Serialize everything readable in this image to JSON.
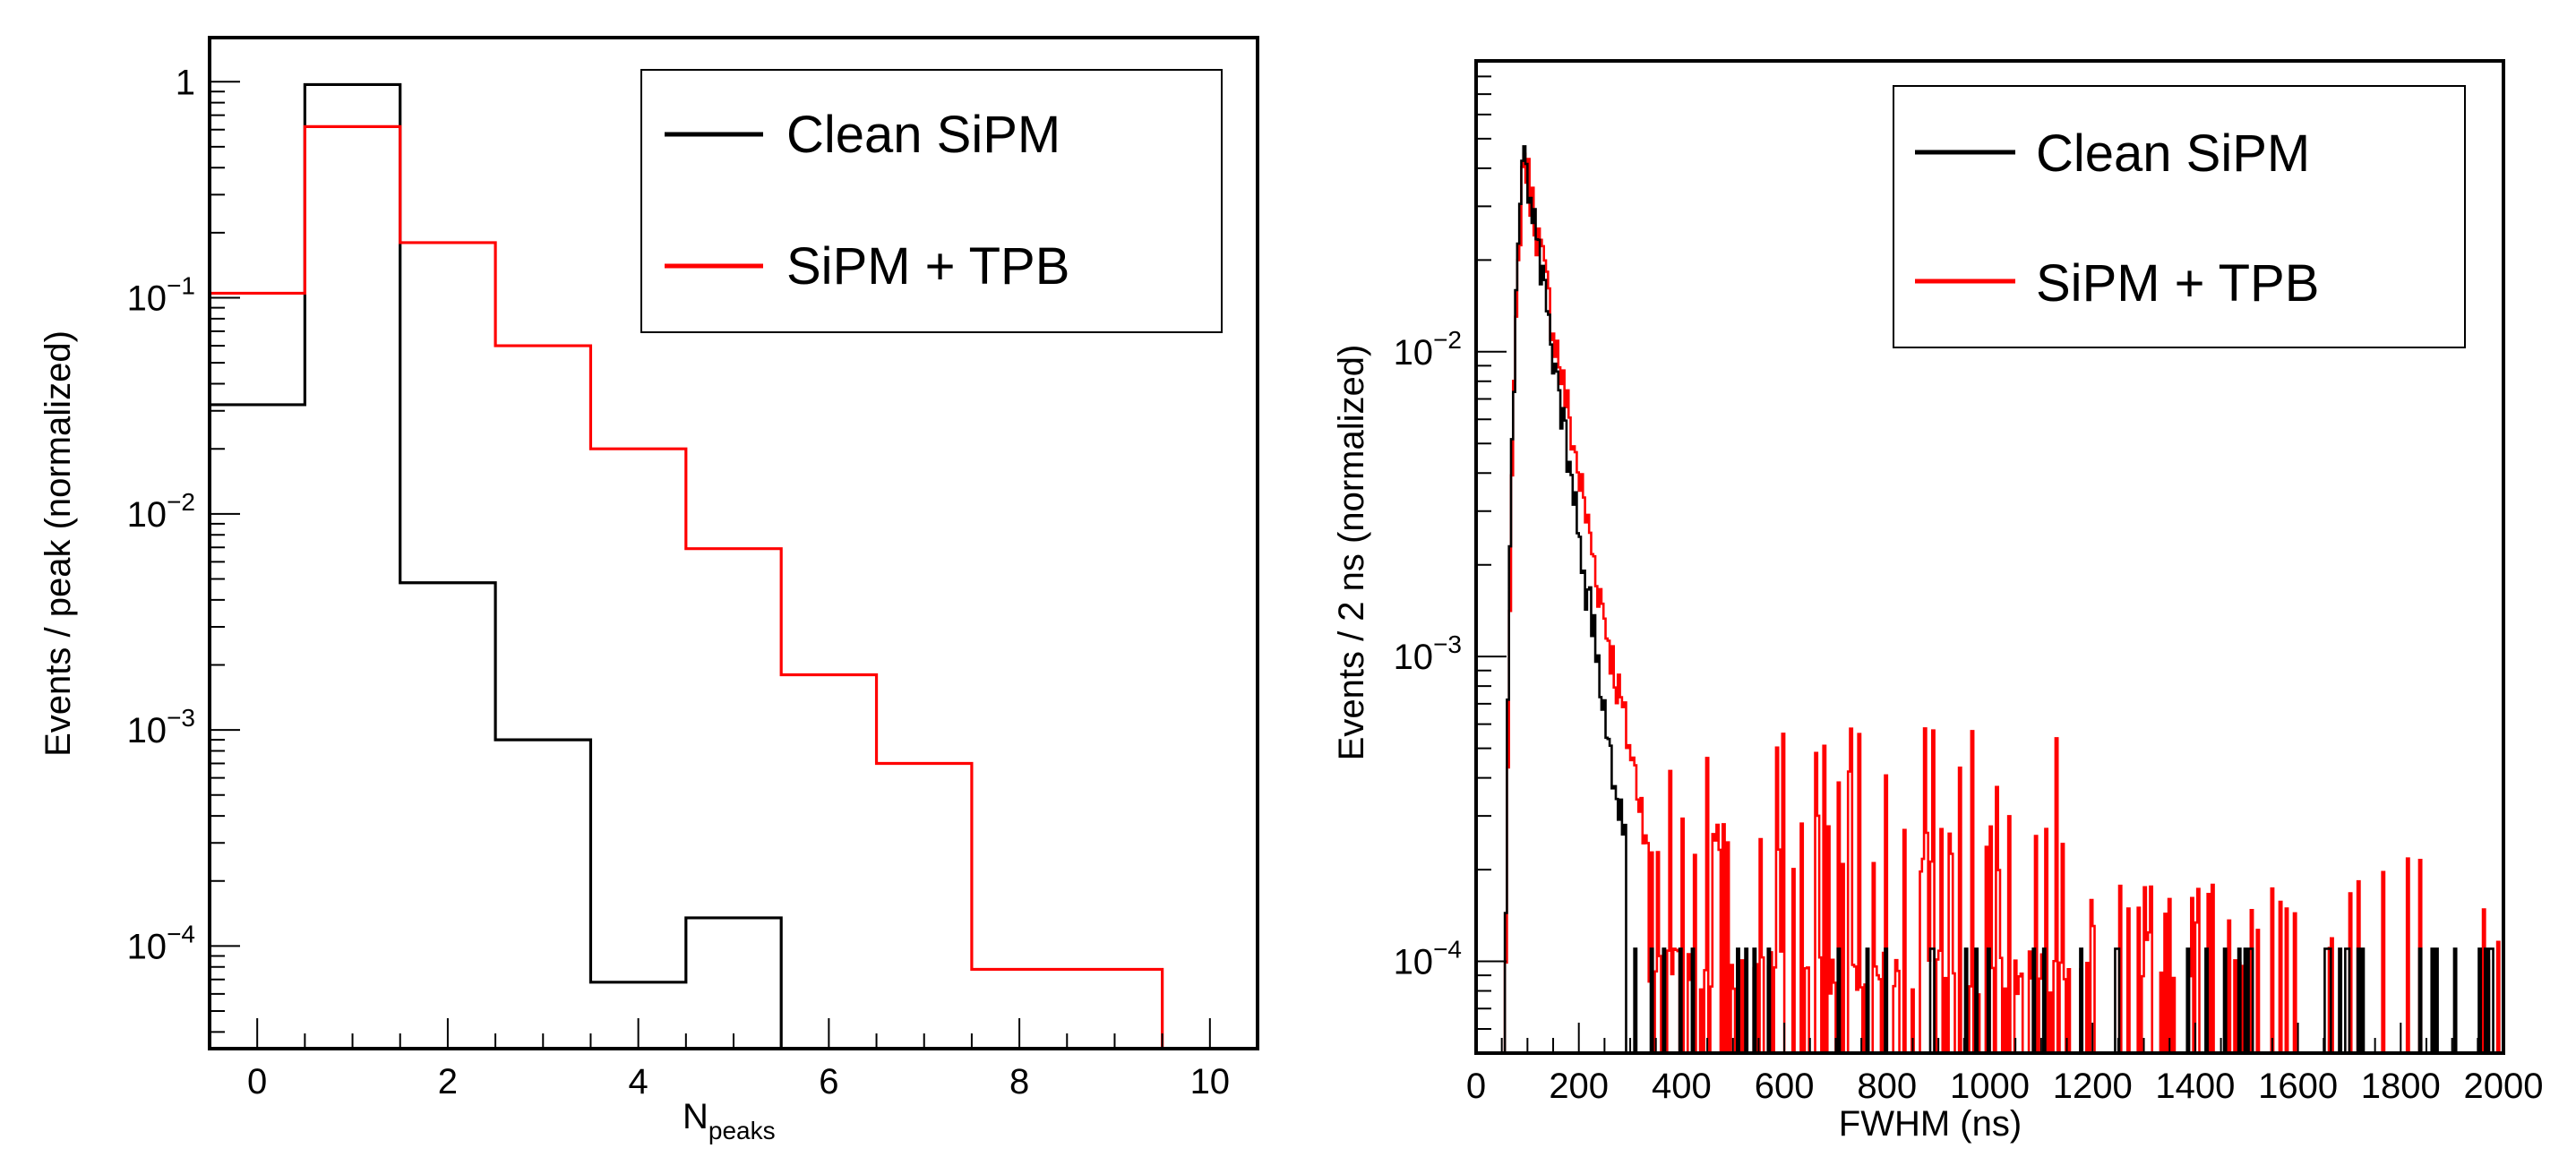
{
  "chart_data": [
    {
      "type": "step-histogram",
      "ylog": true,
      "xlabel": "N",
      "xlabel_sub": "peaks",
      "ylabel": "Events / peak (normalized)",
      "xlim": [
        -0.5,
        10.5
      ],
      "ylim": [
        3.35e-05,
        1.6
      ],
      "x_ticks": [
        0,
        2,
        4,
        6,
        8,
        10
      ],
      "x_tick_labels": [
        "0",
        "2",
        "4",
        "6",
        "8",
        "10"
      ],
      "y_ticks": [
        0.0001,
        0.001,
        0.01,
        0.1,
        1
      ],
      "y_tick_labels": [
        {
          "base": "10",
          "exp": "−4"
        },
        {
          "base": "10",
          "exp": "−3"
        },
        {
          "base": "10",
          "exp": "−2"
        },
        {
          "base": "10",
          "exp": "−1"
        },
        {
          "base": "1",
          "exp": ""
        }
      ],
      "legend": {
        "position": "top-right",
        "entries": [
          "Clean SiPM",
          "SiPM + TPB"
        ]
      },
      "series": [
        {
          "name": "Clean SiPM",
          "color": "#000000",
          "bins": [
            0,
            1,
            2,
            3,
            4,
            5,
            6,
            7,
            8,
            9,
            10
          ],
          "values": [
            0.032,
            0.97,
            0.0048,
            0.0009,
            6.8e-05,
            0.000135,
            0,
            0,
            0,
            0,
            0
          ]
        },
        {
          "name": "SiPM + TPB",
          "color": "#ff0000",
          "bins": [
            0,
            1,
            2,
            3,
            4,
            5,
            6,
            7,
            8,
            9,
            10
          ],
          "values": [
            0.105,
            0.62,
            0.18,
            0.06,
            0.02,
            0.0069,
            0.0018,
            0.0007,
            7.8e-05,
            7.8e-05,
            0
          ]
        }
      ]
    },
    {
      "type": "step-histogram",
      "ylog": true,
      "xlabel": "FWHM (ns)",
      "ylabel": "Events / 2 ns (normalized)",
      "xlim": [
        0,
        2000
      ],
      "ylim": [
        5e-05,
        0.09
      ],
      "x_ticks": [
        0,
        200,
        400,
        600,
        800,
        1000,
        1200,
        1400,
        1600,
        1800,
        2000
      ],
      "x_tick_labels": [
        "0",
        "200",
        "400",
        "600",
        "800",
        "1000",
        "1200",
        "1400",
        "1600",
        "1800",
        "2000"
      ],
      "y_ticks": [
        0.0001,
        0.001,
        0.01
      ],
      "y_tick_labels": [
        {
          "base": "10",
          "exp": "−4"
        },
        {
          "base": "10",
          "exp": "−3"
        },
        {
          "base": "10",
          "exp": "−2"
        }
      ],
      "legend": {
        "position": "top-right",
        "entries": [
          "Clean SiPM",
          "SiPM + TPB"
        ]
      },
      "series": [
        {
          "name": "Clean SiPM",
          "color": "#000000",
          "peak_x": 88,
          "peak_y": 0.049
        },
        {
          "name": "SiPM + TPB",
          "color": "#ff0000",
          "peak_x": 90,
          "peak_y": 0.045,
          "tail_level": 0.00014
        }
      ]
    }
  ]
}
